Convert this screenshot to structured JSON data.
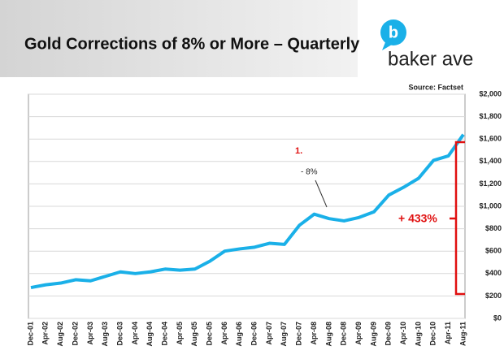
{
  "header": {
    "title": "Gold Corrections of 8% or More – Quarterly",
    "logo_letter": "b",
    "logo_text": "baker ave"
  },
  "chart_data": {
    "type": "line",
    "source": "Source: Factset",
    "categories": [
      "Dec-01",
      "Apr-02",
      "Aug-02",
      "Dec-02",
      "Apr-03",
      "Aug-03",
      "Dec-03",
      "Apr-04",
      "Aug-04",
      "Dec-04",
      "Apr-05",
      "Aug-05",
      "Dec-05",
      "Apr-06",
      "Aug-06",
      "Dec-06",
      "Apr-07",
      "Aug-07",
      "Dec-07",
      "Apr-08",
      "Aug-08",
      "Dec-08",
      "Apr-09",
      "Aug-09",
      "Dec-09",
      "Apr-10",
      "Aug-10",
      "Dec-10",
      "Apr-11",
      "Aug-11"
    ],
    "series": [
      {
        "name": "Gold",
        "color": "#1ab0e8",
        "values": [
          275,
          300,
          315,
          345,
          335,
          375,
          415,
          400,
          415,
          440,
          430,
          440,
          510,
          600,
          620,
          635,
          670,
          660,
          830,
          930,
          890,
          870,
          900,
          950,
          1100,
          1170,
          1250,
          1410,
          1450,
          1640
        ]
      }
    ],
    "ylim": [
      0,
      2000
    ],
    "yticks": [
      {
        "value": 0,
        "label": "$0"
      },
      {
        "value": 200,
        "label": "$200"
      },
      {
        "value": 400,
        "label": "$400"
      },
      {
        "value": 600,
        "label": "$600"
      },
      {
        "value": 800,
        "label": "$800"
      },
      {
        "value": 1000,
        "label": "$1,000"
      },
      {
        "value": 1200,
        "label": "$1,200"
      },
      {
        "value": 1400,
        "label": "$1,400"
      },
      {
        "value": 1600,
        "label": "$1,600"
      },
      {
        "value": 1800,
        "label": "$1,800"
      },
      {
        "value": 2000,
        "label": "$2,000"
      }
    ],
    "grid": true,
    "annotations": [
      "1.",
      "- 8%",
      "+ 433%"
    ]
  }
}
